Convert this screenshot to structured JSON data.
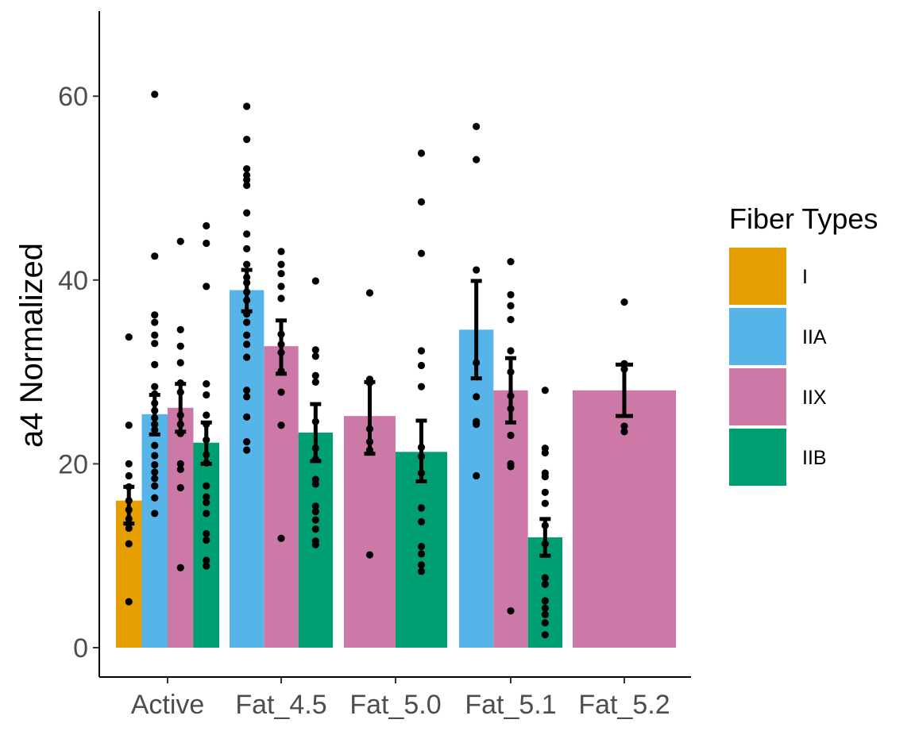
{
  "chart_data": {
    "type": "bar",
    "xlabel": "",
    "ylabel": "a4 Normalized",
    "ylim": [
      -3,
      69
    ],
    "yticks": [
      0,
      20,
      40,
      60
    ],
    "categories": [
      "Active",
      "Fat_4.5",
      "Fat_5.0",
      "Fat_5.1",
      "Fat_5.2"
    ],
    "grid": false,
    "legend": {
      "title": "Fiber Types",
      "placement": "right",
      "entries": [
        {
          "name": "I",
          "color": "#E69F00"
        },
        {
          "name": "IIA",
          "color": "#56B4E9"
        },
        {
          "name": "IIX",
          "color": "#CC79A7"
        },
        {
          "name": "IIB",
          "color": "#009E73"
        }
      ]
    },
    "bars": [
      {
        "category": "Active",
        "fiber": "I",
        "value": 16.0,
        "se_low": 13.5,
        "se_high": 17.5,
        "points": [
          33.8,
          24.2,
          20.0,
          18.7,
          17.5,
          16.0,
          15.0,
          14.0,
          13.0,
          11.3,
          5.0
        ]
      },
      {
        "category": "Active",
        "fiber": "IIA",
        "value": 25.4,
        "se_low": 23.2,
        "se_high": 27.5,
        "points": [
          60.2,
          42.6,
          36.2,
          35.4,
          34.0,
          33.1,
          30.8,
          28.4,
          27.6,
          26.6,
          25.8,
          25.0,
          24.3,
          23.7,
          22.0,
          20.9,
          19.9,
          19.1,
          18.4,
          17.6,
          16.3,
          14.6
        ]
      },
      {
        "category": "Active",
        "fiber": "IIX",
        "value": 26.1,
        "se_low": 23.5,
        "se_high": 28.7,
        "points": [
          44.2,
          34.6,
          32.8,
          31.0,
          28.8,
          27.8,
          25.3,
          24.3,
          23.3,
          20.0,
          19.4,
          17.4,
          8.7
        ]
      },
      {
        "category": "Active",
        "fiber": "IIB",
        "value": 22.3,
        "se_low": 20.0,
        "se_high": 24.5,
        "points": [
          45.9,
          44.0,
          39.3,
          28.7,
          27.5,
          25.3,
          24.3,
          22.6,
          21.0,
          20.1,
          17.6,
          16.4,
          15.8,
          14.6,
          12.4,
          11.7,
          9.5,
          8.9
        ]
      },
      {
        "category": "Fat_4.5",
        "fiber": "IIA",
        "value": 38.9,
        "se_low": 36.6,
        "se_high": 41.1,
        "points": [
          58.9,
          55.3,
          52.1,
          51.4,
          50.9,
          50.3,
          47.3,
          45.0,
          43.4,
          41.7,
          40.3,
          39.7,
          38.7,
          37.8,
          36.3,
          35.4,
          34.0,
          33.0,
          31.6,
          28.0,
          27.3,
          25.1,
          22.4,
          21.5
        ]
      },
      {
        "category": "Fat_4.5",
        "fiber": "IIX",
        "value": 32.8,
        "se_low": 29.8,
        "se_high": 35.6,
        "points": [
          43.1,
          41.7,
          40.7,
          39.3,
          38.0,
          34.1,
          33.0,
          32.1,
          30.1,
          27.8,
          24.2,
          11.9
        ]
      },
      {
        "category": "Fat_4.5",
        "fiber": "IIB",
        "value": 23.4,
        "se_low": 20.3,
        "se_high": 26.5,
        "points": [
          39.9,
          32.4,
          31.7,
          29.6,
          28.9,
          24.6,
          21.7,
          20.5,
          18.3,
          17.8,
          15.4,
          14.8,
          13.9,
          12.9,
          11.6,
          11.2
        ]
      },
      {
        "category": "Fat_5.0",
        "fiber": "IIX",
        "value": 25.2,
        "se_low": 21.1,
        "se_high": 28.9,
        "points": [
          38.6,
          29.2,
          28.8,
          23.8,
          22.4,
          21.5,
          10.1
        ]
      },
      {
        "category": "Fat_5.0",
        "fiber": "IIB",
        "value": 21.3,
        "se_low": 18.1,
        "se_high": 24.7,
        "points": [
          53.8,
          48.5,
          42.9,
          32.3,
          30.7,
          28.4,
          21.8,
          20.8,
          19.0,
          15.2,
          13.7,
          11.0,
          10.2,
          9.0,
          8.3
        ]
      },
      {
        "category": "Fat_5.1",
        "fiber": "IIA",
        "value": 34.6,
        "se_low": 29.3,
        "se_high": 39.9,
        "points": [
          56.7,
          53.1,
          41.1,
          31.0,
          27.3,
          24.6,
          24.3,
          18.7
        ]
      },
      {
        "category": "Fat_5.1",
        "fiber": "IIX",
        "value": 28.0,
        "se_low": 24.5,
        "se_high": 31.5,
        "points": [
          42.0,
          38.4,
          37.2,
          35.7,
          32.3,
          30.0,
          27.4,
          26.0,
          23.1,
          20.0,
          19.7,
          4.0
        ]
      },
      {
        "category": "Fat_5.1",
        "fiber": "IIB",
        "value": 12.0,
        "se_low": 10.0,
        "se_high": 14.0,
        "points": [
          28.0,
          21.7,
          21.2,
          19.0,
          18.6,
          16.9,
          15.7,
          13.3,
          11.3,
          7.6,
          6.9,
          5.1,
          4.3,
          3.6,
          2.7,
          1.4
        ]
      },
      {
        "category": "Fat_5.2",
        "fiber": "IIX",
        "value": 28.0,
        "se_low": 25.2,
        "se_high": 30.8,
        "points": [
          37.6,
          30.9,
          30.3,
          24.1,
          23.5
        ]
      }
    ]
  }
}
